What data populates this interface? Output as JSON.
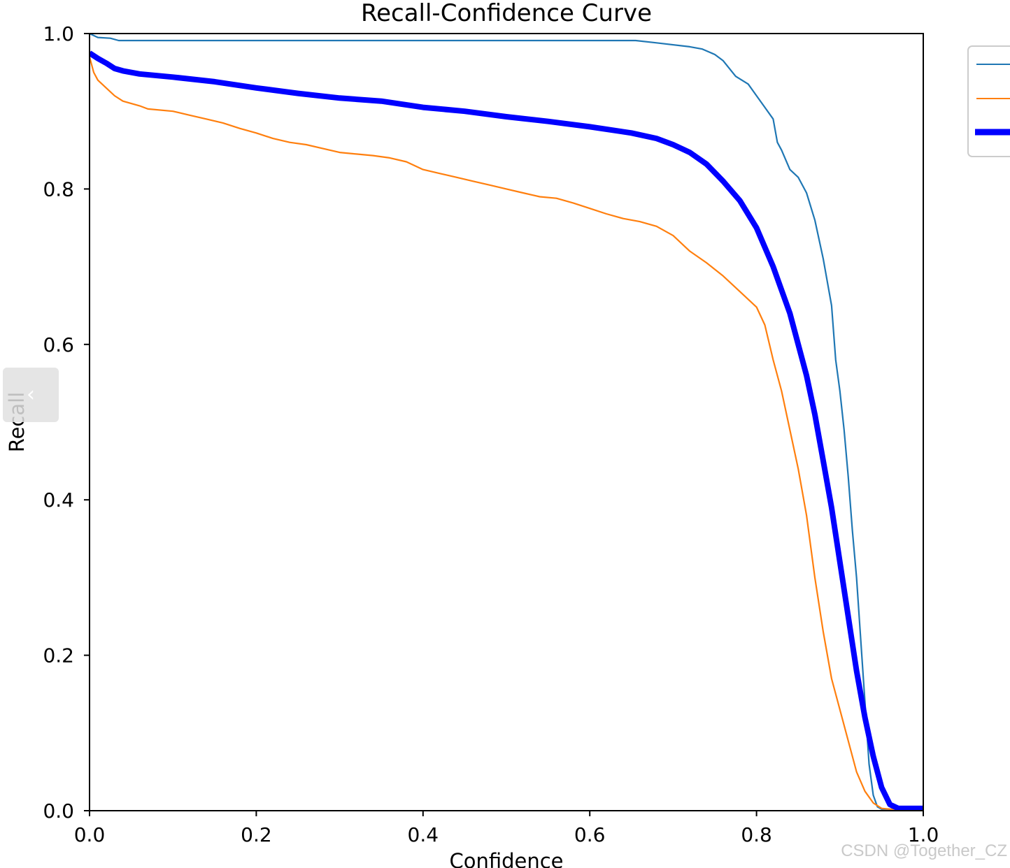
{
  "chart_data": {
    "type": "line",
    "title": "Recall-Confidence Curve",
    "xlabel": "Confidence",
    "ylabel": "Recall",
    "xlim": [
      0.0,
      1.0
    ],
    "ylim": [
      0.0,
      1.0
    ],
    "xticks": [
      "0.0",
      "0.2",
      "0.4",
      "0.6",
      "0.8",
      "1.0"
    ],
    "yticks": [
      "0.0",
      "0.2",
      "0.4",
      "0.6",
      "0.8",
      "1.0"
    ],
    "grid": false,
    "legend_position": "right (clipped)",
    "series": [
      {
        "color": "#1f77b4",
        "x": [
          0.0,
          0.01,
          0.025,
          0.035,
          0.1,
          0.2,
          0.3,
          0.4,
          0.5,
          0.6,
          0.655,
          0.68,
          0.72,
          0.735,
          0.75,
          0.76,
          0.775,
          0.79,
          0.8,
          0.81,
          0.82,
          0.825,
          0.83,
          0.84,
          0.85,
          0.86,
          0.87,
          0.88,
          0.89,
          0.895,
          0.9,
          0.905,
          0.91,
          0.915,
          0.92,
          0.925,
          0.93,
          0.935,
          0.94,
          0.945,
          0.95,
          0.96,
          0.97,
          1.0
        ],
        "y": [
          1.0,
          0.995,
          0.994,
          0.991,
          0.991,
          0.991,
          0.991,
          0.991,
          0.991,
          0.991,
          0.991,
          0.988,
          0.983,
          0.98,
          0.973,
          0.965,
          0.945,
          0.935,
          0.92,
          0.905,
          0.89,
          0.86,
          0.85,
          0.825,
          0.815,
          0.795,
          0.76,
          0.71,
          0.65,
          0.58,
          0.54,
          0.49,
          0.43,
          0.36,
          0.3,
          0.22,
          0.14,
          0.06,
          0.02,
          0.005,
          0.002,
          0.002,
          0.002,
          0.002
        ]
      },
      {
        "color": "#ff7f0e",
        "x": [
          0.0,
          0.005,
          0.01,
          0.02,
          0.03,
          0.04,
          0.05,
          0.06,
          0.07,
          0.1,
          0.12,
          0.14,
          0.16,
          0.18,
          0.2,
          0.22,
          0.24,
          0.26,
          0.28,
          0.3,
          0.32,
          0.34,
          0.36,
          0.38,
          0.4,
          0.42,
          0.44,
          0.46,
          0.48,
          0.5,
          0.52,
          0.54,
          0.56,
          0.58,
          0.6,
          0.62,
          0.64,
          0.66,
          0.68,
          0.7,
          0.72,
          0.74,
          0.76,
          0.78,
          0.8,
          0.81,
          0.82,
          0.83,
          0.84,
          0.85,
          0.86,
          0.87,
          0.88,
          0.89,
          0.9,
          0.91,
          0.92,
          0.93,
          0.94,
          0.95,
          0.96,
          0.97,
          1.0
        ],
        "y": [
          0.97,
          0.95,
          0.94,
          0.93,
          0.92,
          0.913,
          0.91,
          0.907,
          0.903,
          0.9,
          0.895,
          0.89,
          0.885,
          0.878,
          0.872,
          0.865,
          0.86,
          0.857,
          0.852,
          0.847,
          0.845,
          0.843,
          0.84,
          0.835,
          0.825,
          0.82,
          0.815,
          0.81,
          0.805,
          0.8,
          0.795,
          0.79,
          0.788,
          0.782,
          0.775,
          0.768,
          0.762,
          0.758,
          0.752,
          0.74,
          0.72,
          0.705,
          0.688,
          0.668,
          0.648,
          0.625,
          0.58,
          0.54,
          0.49,
          0.44,
          0.38,
          0.3,
          0.23,
          0.17,
          0.13,
          0.09,
          0.05,
          0.025,
          0.01,
          0.003,
          0.002,
          0.002,
          0.002
        ]
      },
      {
        "color": "#0000ff",
        "x": [
          0.0,
          0.01,
          0.02,
          0.03,
          0.04,
          0.06,
          0.1,
          0.15,
          0.2,
          0.25,
          0.3,
          0.35,
          0.4,
          0.45,
          0.5,
          0.55,
          0.6,
          0.65,
          0.68,
          0.7,
          0.72,
          0.74,
          0.76,
          0.78,
          0.8,
          0.82,
          0.84,
          0.86,
          0.87,
          0.88,
          0.89,
          0.9,
          0.91,
          0.92,
          0.93,
          0.94,
          0.95,
          0.96,
          0.97,
          0.98,
          1.0
        ],
        "y": [
          0.975,
          0.968,
          0.962,
          0.955,
          0.952,
          0.948,
          0.944,
          0.938,
          0.93,
          0.923,
          0.917,
          0.913,
          0.905,
          0.9,
          0.893,
          0.887,
          0.88,
          0.872,
          0.865,
          0.857,
          0.847,
          0.832,
          0.81,
          0.785,
          0.75,
          0.7,
          0.64,
          0.56,
          0.51,
          0.45,
          0.39,
          0.32,
          0.25,
          0.18,
          0.12,
          0.07,
          0.03,
          0.008,
          0.003,
          0.003,
          0.003
        ]
      }
    ]
  },
  "watermark": "CSDN @Together_CZ",
  "nav": {
    "prev_glyph": "‹"
  }
}
